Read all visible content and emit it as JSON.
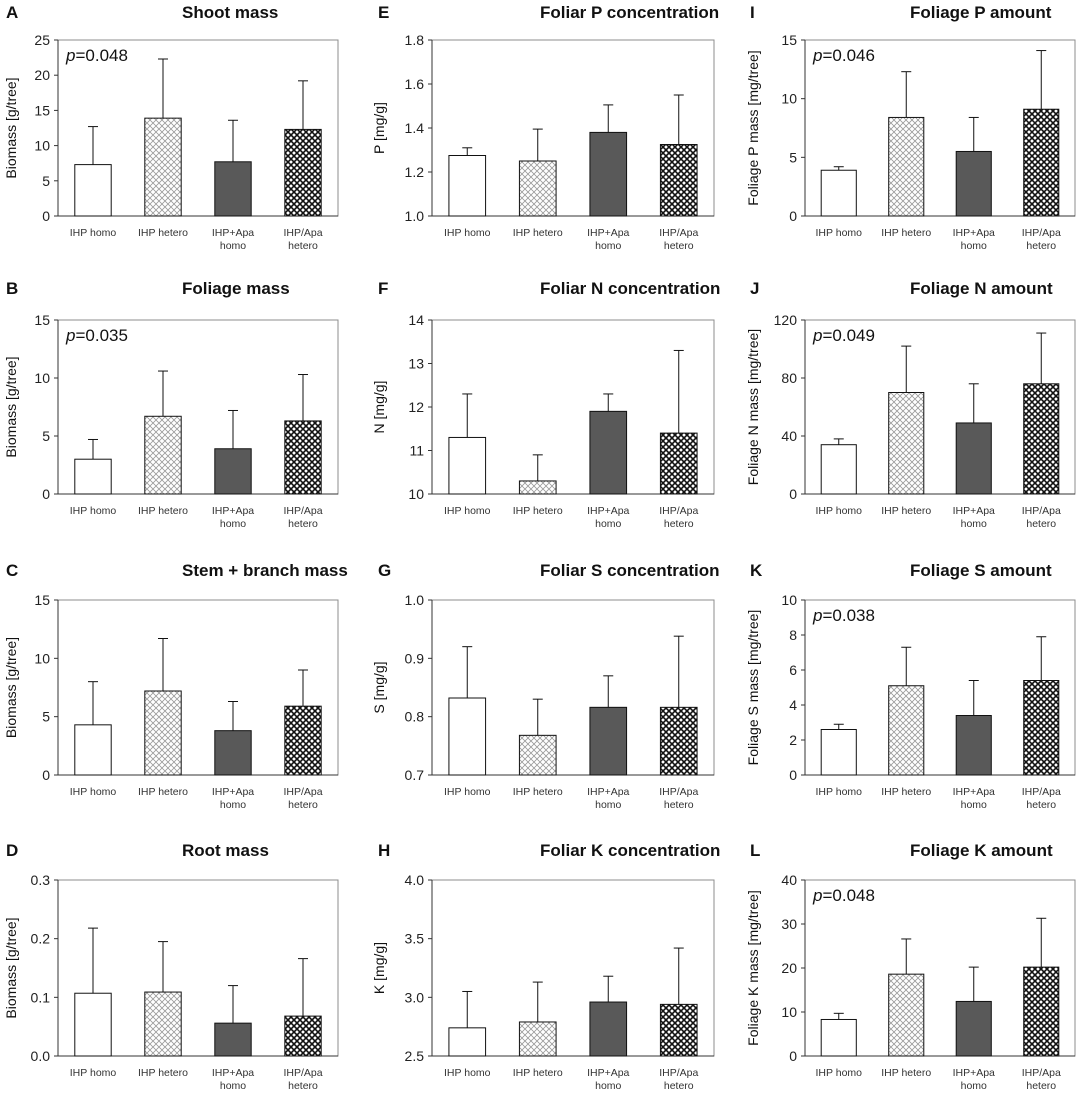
{
  "categories": [
    [
      "IHP homo"
    ],
    [
      "IHP hetero"
    ],
    [
      "IHP+Apa",
      "homo"
    ],
    [
      "IHP/Apa",
      "hetero"
    ]
  ],
  "colors": {
    "bar_stroke": "#111111",
    "dark_fill": "#595959",
    "grid_light": "#9a9a9a",
    "grid_dark": "#111111",
    "frame": "#8c8c8c"
  },
  "chart_data": [
    {
      "panel": "A",
      "type": "bar",
      "title": "Shoot mass",
      "ylabel": "Biomass [g/tree]",
      "pvalue": "=0.048",
      "ylim": [
        0,
        25
      ],
      "ticks": [
        "0",
        "5",
        "10",
        "15",
        "20",
        "25"
      ],
      "values": [
        7.3,
        13.9,
        7.7,
        12.3
      ],
      "errors": [
        5.4,
        8.4,
        5.9,
        6.9
      ]
    },
    {
      "panel": "B",
      "type": "bar",
      "title": "Foliage mass",
      "ylabel": "Biomass [g/tree]",
      "pvalue": "=0.035",
      "ylim": [
        0,
        15
      ],
      "ticks": [
        "0",
        "5",
        "10",
        "15"
      ],
      "values": [
        3.0,
        6.7,
        3.9,
        6.3
      ],
      "errors": [
        1.7,
        3.9,
        3.3,
        4.0
      ]
    },
    {
      "panel": "C",
      "type": "bar",
      "title": "Stem + branch mass",
      "ylabel": "Biomass [g/tree]",
      "pvalue": null,
      "ylim": [
        0,
        15
      ],
      "ticks": [
        "0",
        "5",
        "10",
        "15"
      ],
      "values": [
        4.3,
        7.2,
        3.8,
        5.9
      ],
      "errors": [
        3.7,
        4.5,
        2.5,
        3.1
      ]
    },
    {
      "panel": "D",
      "type": "bar",
      "title": "Root mass",
      "ylabel": "Biomass [g/tree]",
      "pvalue": null,
      "ylim": [
        0,
        0.3
      ],
      "ticks": [
        "0.0",
        "0.1",
        "0.2",
        "0.3"
      ],
      "values": [
        0.107,
        0.109,
        0.056,
        0.068
      ],
      "errors": [
        0.111,
        0.086,
        0.064,
        0.098
      ]
    },
    {
      "panel": "E",
      "type": "bar",
      "title": "Foliar P concentration",
      "ylabel": "P  [mg/g]",
      "pvalue": null,
      "ylim": [
        1.0,
        1.8
      ],
      "ticks": [
        "1.0",
        "1.2",
        "1.4",
        "1.6",
        "1.8"
      ],
      "values": [
        1.275,
        1.25,
        1.38,
        1.325
      ],
      "errors": [
        0.035,
        0.145,
        0.125,
        0.225
      ]
    },
    {
      "panel": "F",
      "type": "bar",
      "title": "Foliar N concentration",
      "ylabel": "N  [mg/g]",
      "pvalue": null,
      "ylim": [
        10,
        14
      ],
      "ticks": [
        "10",
        "11",
        "12",
        "13",
        "14"
      ],
      "values": [
        11.3,
        10.3,
        11.9,
        11.4
      ],
      "errors": [
        1.0,
        0.6,
        0.4,
        1.9
      ]
    },
    {
      "panel": "G",
      "type": "bar",
      "title": "Foliar S concentration",
      "ylabel": "S [mg/g]",
      "pvalue": null,
      "ylim": [
        0.7,
        1.0
      ],
      "ticks": [
        "0.7",
        "0.8",
        "0.9",
        "1.0"
      ],
      "values": [
        0.832,
        0.768,
        0.816,
        0.816
      ],
      "errors": [
        0.088,
        0.062,
        0.054,
        0.122
      ]
    },
    {
      "panel": "H",
      "type": "bar",
      "title": "Foliar K concentration",
      "ylabel": "K  [mg/g]",
      "pvalue": null,
      "ylim": [
        2.5,
        4.0
      ],
      "ticks": [
        "2.5",
        "3.0",
        "3.5",
        "4.0"
      ],
      "values": [
        2.74,
        2.79,
        2.96,
        2.94
      ],
      "errors": [
        0.31,
        0.34,
        0.22,
        0.48
      ]
    },
    {
      "panel": "I",
      "type": "bar",
      "title": "Foliage P amount",
      "ylabel": "Foliage P mass [mg/tree]",
      "pvalue": "=0.046",
      "ylim": [
        0,
        15
      ],
      "ticks": [
        "0",
        "5",
        "10",
        "15"
      ],
      "values": [
        3.9,
        8.4,
        5.5,
        9.1
      ],
      "errors": [
        0.3,
        3.9,
        2.9,
        5.0
      ]
    },
    {
      "panel": "J",
      "type": "bar",
      "title": "Foliage N amount",
      "ylabel": "Foliage N mass [mg/tree]",
      "pvalue": "=0.049",
      "ylim": [
        0,
        120
      ],
      "ticks": [
        "0",
        "40",
        "80",
        "120"
      ],
      "values": [
        34,
        70,
        49,
        76
      ],
      "errors": [
        4,
        32,
        27,
        35
      ]
    },
    {
      "panel": "K",
      "type": "bar",
      "title": "Foliage S amount",
      "ylabel": "Foliage S mass  [mg/tree]",
      "pvalue": "=0.038",
      "ylim": [
        0,
        10
      ],
      "ticks": [
        "0",
        "2",
        "4",
        "6",
        "8",
        "10"
      ],
      "values": [
        2.6,
        5.1,
        3.4,
        5.4
      ],
      "errors": [
        0.3,
        2.2,
        2.0,
        2.5
      ]
    },
    {
      "panel": "L",
      "type": "bar",
      "title": "Foliage K amount",
      "ylabel": "Foliage K mass  [mg/tree]",
      "pvalue": "=0.048",
      "ylim": [
        0,
        40
      ],
      "ticks": [
        "0",
        "10",
        "20",
        "30",
        "40"
      ],
      "values": [
        8.3,
        18.6,
        12.4,
        20.2
      ],
      "errors": [
        1.4,
        8.0,
        7.8,
        11.1
      ]
    }
  ]
}
